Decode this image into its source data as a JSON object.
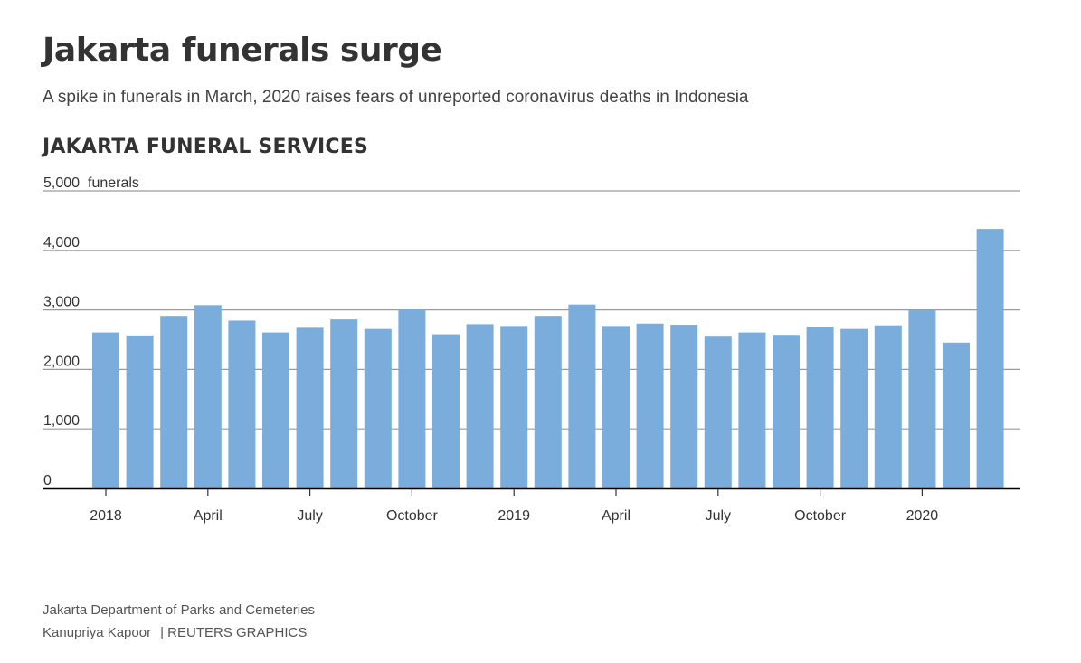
{
  "header": {
    "title": "Jakarta funerals surge",
    "subtitle": "A spike in funerals in March, 2020 raises fears of unreported coronavirus deaths in Indonesia",
    "section": "JAKARTA FUNERAL SERVICES"
  },
  "footer": {
    "source": "Jakarta Department of Parks and Cemeteries",
    "author": "Kanupriya Kapoor",
    "agency": "| REUTERS GRAPHICS"
  },
  "chart_data": {
    "type": "bar",
    "title": "JAKARTA FUNERAL SERVICES",
    "ylabel": "funerals",
    "xlabel": "",
    "ylim": [
      0,
      5000
    ],
    "yticks": [
      0,
      1000,
      2000,
      3000,
      4000,
      5000
    ],
    "ytick_labels": [
      "0",
      "1,000",
      "2,000",
      "3,000",
      "4,000",
      "5,000"
    ],
    "ytick_unit": "funerals",
    "grid": true,
    "categories": [
      "Jan 2018",
      "Feb 2018",
      "Mar 2018",
      "Apr 2018",
      "May 2018",
      "Jun 2018",
      "Jul 2018",
      "Aug 2018",
      "Sep 2018",
      "Oct 2018",
      "Nov 2018",
      "Dec 2018",
      "Jan 2019",
      "Feb 2019",
      "Mar 2019",
      "Apr 2019",
      "May 2019",
      "Jun 2019",
      "Jul 2019",
      "Aug 2019",
      "Sep 2019",
      "Oct 2019",
      "Nov 2019",
      "Dec 2019",
      "Jan 2020",
      "Feb 2020",
      "Mar 2020"
    ],
    "values": [
      2620,
      2570,
      2900,
      3080,
      2820,
      2620,
      2700,
      2840,
      2680,
      3010,
      2590,
      2760,
      2730,
      2900,
      3090,
      2730,
      2770,
      2750,
      2550,
      2620,
      2580,
      2720,
      2680,
      2740,
      3000,
      2450,
      4360
    ],
    "xtick_labels": [
      {
        "index": 0,
        "label": "2018"
      },
      {
        "index": 3,
        "label": "April"
      },
      {
        "index": 6,
        "label": "July"
      },
      {
        "index": 9,
        "label": "October"
      },
      {
        "index": 12,
        "label": "2019"
      },
      {
        "index": 15,
        "label": "April"
      },
      {
        "index": 18,
        "label": "July"
      },
      {
        "index": 21,
        "label": "October"
      },
      {
        "index": 24,
        "label": "2020"
      }
    ],
    "colors": {
      "bar": "#7aaddc",
      "grid": "#9a9a9a",
      "baseline": "#000000"
    }
  }
}
